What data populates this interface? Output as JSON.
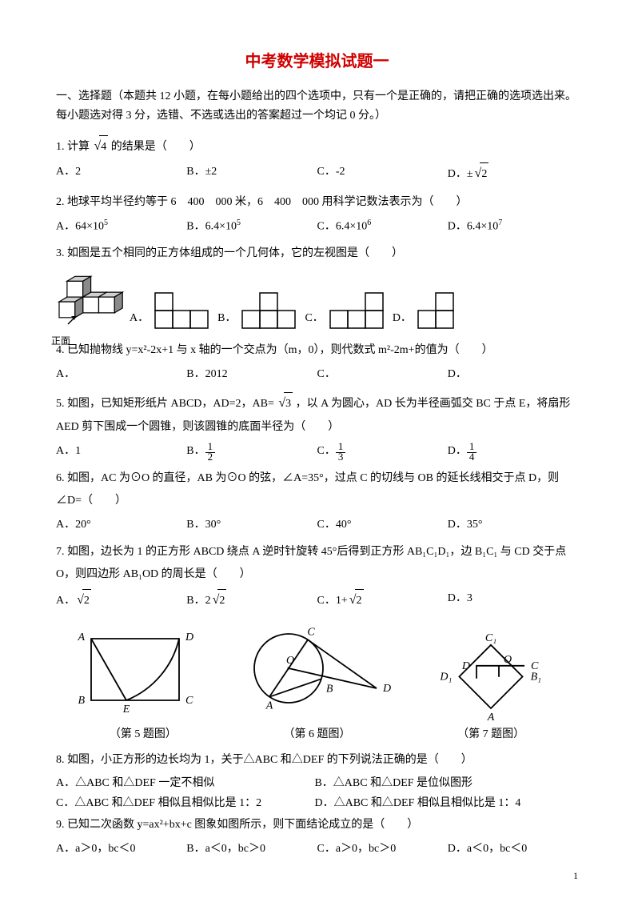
{
  "title": "中考数学模拟试题一",
  "section1": "一、选择题（本题共 12 小题，在每小题给出的四个选项中，只有一个是正确的，请把正确的选项选出来。每小题选对得 3 分，选错、不选或选出的答案超过一个均记 0 分。）",
  "q1": {
    "text_a": "1. 计算",
    "sqrt_arg": "4",
    "text_b": " 的结果是（　　）",
    "opts": {
      "A": "A．2",
      "B": "B．±2",
      "C": "C．-2",
      "D_pre": "D．±",
      "D_sqrt": "2"
    }
  },
  "q2": {
    "text": "2. 地球平均半径约等于 6　400　000 米，6　400　000 用科学记数法表示为（　　）",
    "opts": {
      "A": "A．64×10",
      "Ae": "5",
      "B": "B．6.4×10",
      "Be": "5",
      "C": "C．6.4×10",
      "Ce": "6",
      "D": "D．6.4×10",
      "De": "7"
    }
  },
  "q3": {
    "text": "3. 如图是五个相同的正方体组成的一个几何体，它的左视图是（　　）",
    "labels": {
      "A": "A．",
      "B": "B．",
      "C": "C．",
      "D": "D．"
    },
    "front_label": "正面",
    "cell": 22,
    "stroke": "#000000",
    "fill_side": "#8a8a8a",
    "fill_top": "#d0d0d0"
  },
  "q4": {
    "text": "4. 已知抛物线 y=x²-2x+1 与 x 轴的一个交点为（m，0），则代数式 m²-2m+的值为（　　）",
    "opts": {
      "A": "A．",
      "B": "B．2012",
      "C": "C．",
      "D": "D．"
    }
  },
  "q5": {
    "text_a": "5. 如图，已知矩形纸片 ABCD，AD=2，AB= ",
    "sqrt_arg": "3",
    "text_b": "，以 A 为圆心，AD 长为半径画弧交 BC 于点 E，将扇形 AED 剪下围成一个圆锥，则该圆锥的底面半径为（　　）",
    "opts": {
      "A": "A．1",
      "B_num": "1",
      "B_den": "2",
      "C_num": "1",
      "C_den": "3",
      "D_num": "1",
      "D_den": "4"
    }
  },
  "q6": {
    "text": "6. 如图，AC 为⊙O 的直径，AB 为⊙O 的弦，∠A=35°，过点 C 的切线与 OB 的延长线相交于点 D，则∠D=（　　）",
    "opts": {
      "A": "A．20°",
      "B": "B．30°",
      "C": "C．40°",
      "D": "D．35°"
    }
  },
  "q7": {
    "text": "7. 如图，边长为 1 的正方形 ABCD 绕点 A 逆时针旋转 45°后得到正方形 AB₁C₁D₁，边 B₁C₁ 与 CD 交于点 O，则四边形 AB₁OD 的周长是（　　）",
    "opts": {
      "A_pre": "A．",
      "A_sqrt": "2",
      "B_pre": "B．2",
      "B_sqrt": "2",
      "C_pre": "C．1+",
      "C_sqrt": "2",
      "D": "D．3"
    }
  },
  "figs": {
    "cap5": "（第 5 题图）",
    "cap6": "（第 6 题图）",
    "cap7": "（第 7 题图）",
    "f5": {
      "A": "A",
      "B": "B",
      "C": "C",
      "D": "D",
      "E": "E"
    },
    "f6": {
      "A": "A",
      "B": "B",
      "C": "C",
      "D": "D",
      "O": "O"
    },
    "f7": {
      "A": "A",
      "B1": "B₁",
      "C": "C",
      "C1": "C₁",
      "D": "D",
      "D1": "D₁",
      "O": "O"
    },
    "stroke": "#000000",
    "sw": 1.8,
    "font_size": 14
  },
  "q8": {
    "text": "8. 如图，小正方形的边长均为 1，关于△ABC 和△DEF 的下列说法正确的是（　　）",
    "opts": {
      "A": "A．△ABC 和△DEF 一定不相似",
      "B": "B．△ABC 和△DEF 是位似图形",
      "C": "C．△ABC 和△DEF 相似且相似比是 1：2",
      "D": "D．△ABC 和△DEF 相似且相似比是 1：4"
    }
  },
  "q9": {
    "text": "9. 已知二次函数 y=ax²+bx+c 图象如图所示，则下面结论成立的是（　　）",
    "opts": {
      "A": "A．a＞0，bc＜0",
      "B": "B．a＜0，bc＞0",
      "C": "C．a＞0，bc＞0",
      "D": "D．a＜0，bc＜0"
    }
  },
  "page_number": "1"
}
